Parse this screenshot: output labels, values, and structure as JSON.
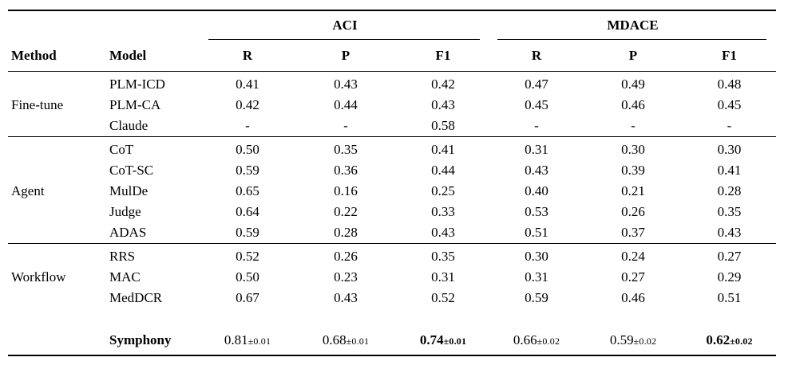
{
  "table": {
    "col_groups": [
      {
        "label": "ACI"
      },
      {
        "label": "MDACE"
      }
    ],
    "headers": {
      "method": "Method",
      "model": "Model",
      "metrics": [
        "R",
        "P",
        "F1",
        "R",
        "P",
        "F1"
      ]
    },
    "groups": [
      {
        "method": "Fine-tune",
        "rows": [
          {
            "model": "PLM-ICD",
            "values": [
              "0.41",
              "0.43",
              "0.42",
              "0.47",
              "0.49",
              "0.48"
            ]
          },
          {
            "model": "PLM-CA",
            "values": [
              "0.42",
              "0.44",
              "0.43",
              "0.45",
              "0.46",
              "0.45"
            ]
          },
          {
            "model": "Claude",
            "values": [
              "-",
              "-",
              "0.58",
              "-",
              "-",
              "-"
            ]
          }
        ]
      },
      {
        "method": "Agent",
        "rows": [
          {
            "model": "CoT",
            "values": [
              "0.50",
              "0.35",
              "0.41",
              "0.31",
              "0.30",
              "0.30"
            ]
          },
          {
            "model": "CoT-SC",
            "values": [
              "0.59",
              "0.36",
              "0.44",
              "0.43",
              "0.39",
              "0.41"
            ]
          },
          {
            "model": "MulDe",
            "values": [
              "0.65",
              "0.16",
              "0.25",
              "0.40",
              "0.21",
              "0.28"
            ]
          },
          {
            "model": "Judge",
            "values": [
              "0.64",
              "0.22",
              "0.33",
              "0.53",
              "0.26",
              "0.35"
            ]
          },
          {
            "model": "ADAS",
            "values": [
              "0.59",
              "0.28",
              "0.43",
              "0.51",
              "0.37",
              "0.43"
            ]
          }
        ]
      },
      {
        "method": "Workflow",
        "rows": [
          {
            "model": "RRS",
            "values": [
              "0.52",
              "0.26",
              "0.35",
              "0.30",
              "0.24",
              "0.27"
            ]
          },
          {
            "model": "MAC",
            "values": [
              "0.50",
              "0.23",
              "0.31",
              "0.31",
              "0.27",
              "0.29"
            ]
          },
          {
            "model": "MedDCR",
            "values": [
              "0.67",
              "0.43",
              "0.52",
              "0.59",
              "0.46",
              "0.51"
            ]
          }
        ]
      }
    ],
    "highlight_row": {
      "model": "Symphony",
      "values": [
        {
          "main": "0.81",
          "pm": "±0.01",
          "bold": false
        },
        {
          "main": "0.68",
          "pm": "±0.01",
          "bold": false
        },
        {
          "main": "0.74",
          "pm": "±0.01",
          "bold": true
        },
        {
          "main": "0.66",
          "pm": "±0.02",
          "bold": false
        },
        {
          "main": "0.59",
          "pm": "±0.02",
          "bold": false
        },
        {
          "main": "0.62",
          "pm": "±0.02",
          "bold": true
        }
      ]
    },
    "colors": {
      "text": "#000000",
      "background": "#ffffff",
      "rule": "#000000"
    }
  }
}
